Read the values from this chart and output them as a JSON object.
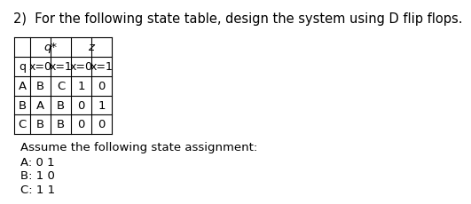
{
  "title": "2)  For the following state table, design the system using D flip flops.",
  "title_fontsize": 10.5,
  "table": {
    "col_headers_row2": [
      "q",
      "x=0",
      "x=1",
      "x=0",
      "x=1"
    ],
    "rows": [
      [
        "A",
        "B",
        "C",
        "1",
        "0"
      ],
      [
        "B",
        "A",
        "B",
        "0",
        "1"
      ],
      [
        "C",
        "B",
        "B",
        "0",
        "0"
      ]
    ]
  },
  "assumption_text": "Assume the following state assignment:",
  "state_assignments": [
    "A: 0 1",
    "B: 1 0",
    "C: 1 1"
  ],
  "text_fontsize": 9.5,
  "small_fontsize": 9.0
}
